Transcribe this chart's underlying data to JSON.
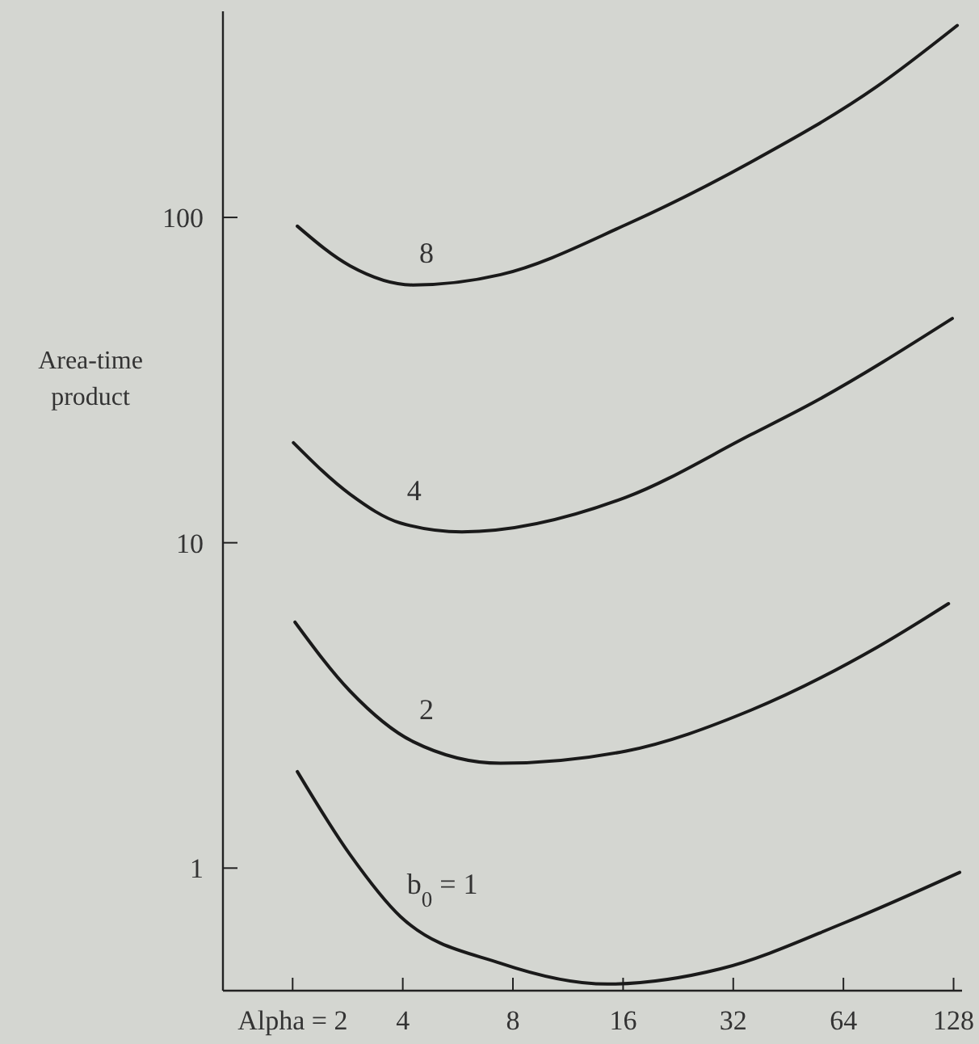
{
  "chart_data": {
    "type": "line",
    "ylabel": "Area-time product",
    "log": "xy",
    "xlim": [
      1.29,
      135
    ],
    "ylim": [
      0.42,
      430
    ],
    "xticks": [
      {
        "value": 2,
        "label": "Alpha = 2"
      },
      4,
      8,
      16,
      32,
      64,
      128
    ],
    "yticks": [
      1,
      10,
      100
    ],
    "grid": false,
    "series": [
      {
        "name": "8",
        "color": "#1a1a1a",
        "x": [
          2.06,
          2.87,
          4.26,
          7.4,
          16.3,
          35.8,
          78.8,
          131
        ],
        "values": [
          94,
          71,
          62,
          66.7,
          95,
          148,
          252,
          389
        ]
      },
      {
        "name": "4",
        "color": "#1a1a1a",
        "x": [
          2.01,
          2.87,
          3.94,
          5.8,
          16.3,
          35.8,
          53,
          127
        ],
        "values": [
          20.3,
          14.1,
          11.5,
          10.8,
          13.8,
          21.5,
          27,
          48.9
        ]
      },
      {
        "name": "2",
        "color": "#1a1a1a",
        "x": [
          2.03,
          2.87,
          4.26,
          7.4,
          16.3,
          35.8,
          78.8,
          124
        ],
        "values": [
          5.7,
          3.5,
          2.45,
          2.1,
          2.29,
          3.06,
          4.76,
          6.5
        ]
      },
      {
        "name": "b$_{0}$ = 1",
        "color": "#1a1a1a",
        "x": [
          2.06,
          2.87,
          3.94,
          7.4,
          14.5,
          29.5,
          64.6,
          133
        ],
        "values": [
          1.98,
          1.1,
          0.71,
          0.51,
          0.44,
          0.49,
          0.68,
          0.97
        ]
      }
    ]
  }
}
